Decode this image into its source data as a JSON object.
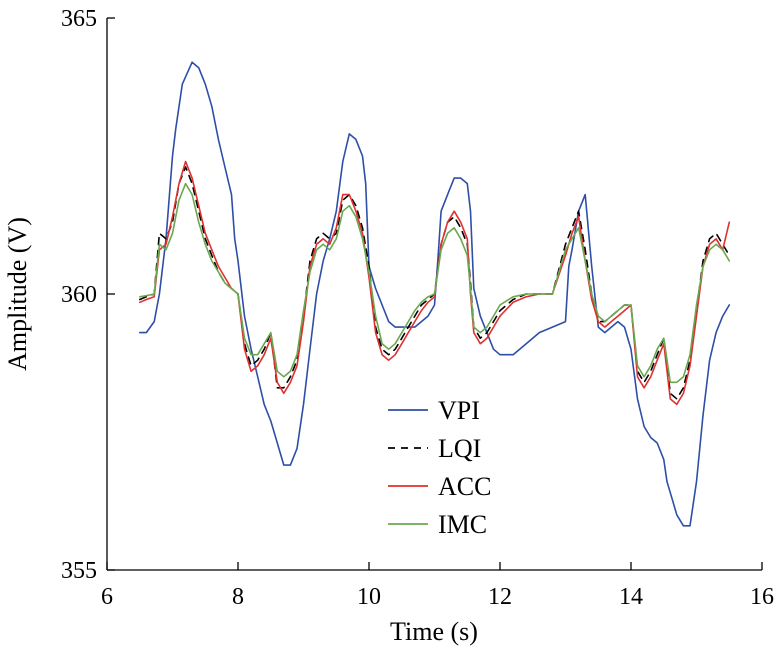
{
  "chart_data": {
    "type": "line",
    "title": "",
    "xlabel": "Time (s)",
    "ylabel": "Amplitude (V)",
    "xlim": [
      6,
      16
    ],
    "ylim": [
      355,
      365
    ],
    "xticks": [
      6,
      8,
      10,
      12,
      14,
      16
    ],
    "yticks": [
      355,
      360,
      365
    ],
    "grid": false,
    "legend_position": "lower-center",
    "series": [
      {
        "name": "VPI",
        "color": "#2e4fa8",
        "dash": "solid",
        "x": [
          6.5,
          6.6,
          6.72,
          6.8,
          6.9,
          7.0,
          7.05,
          7.15,
          7.3,
          7.4,
          7.5,
          7.6,
          7.7,
          7.8,
          7.9,
          7.95,
          8.0,
          8.1,
          8.2,
          8.3,
          8.4,
          8.5,
          8.6,
          8.7,
          8.8,
          8.9,
          9.0,
          9.1,
          9.2,
          9.3,
          9.4,
          9.5,
          9.6,
          9.7,
          9.8,
          9.9,
          9.95,
          10.0,
          10.1,
          10.2,
          10.3,
          10.4,
          10.5,
          10.6,
          10.7,
          10.8,
          10.9,
          11.0,
          11.05,
          11.1,
          11.2,
          11.3,
          11.4,
          11.5,
          11.55,
          11.6,
          11.7,
          11.8,
          11.9,
          12.0,
          12.2,
          12.4,
          12.6,
          12.8,
          13.0,
          13.05,
          13.1,
          13.2,
          13.3,
          13.4,
          13.5,
          13.6,
          13.7,
          13.8,
          13.9,
          14.0,
          14.1,
          14.2,
          14.3,
          14.4,
          14.5,
          14.55,
          14.6,
          14.7,
          14.8,
          14.9,
          15.0,
          15.1,
          15.2,
          15.3,
          15.4,
          15.5
        ],
        "y": [
          359.3,
          359.3,
          359.5,
          360.0,
          361.0,
          362.5,
          363.0,
          363.8,
          364.2,
          364.1,
          363.8,
          363.4,
          362.8,
          362.3,
          361.8,
          361.0,
          360.6,
          359.6,
          359.0,
          358.5,
          358.0,
          357.7,
          357.3,
          356.9,
          356.9,
          357.2,
          358.0,
          359.0,
          360.0,
          360.6,
          361.0,
          361.5,
          362.4,
          362.9,
          362.8,
          362.5,
          362.0,
          360.5,
          360.1,
          359.8,
          359.5,
          359.4,
          359.4,
          359.4,
          359.4,
          359.5,
          359.6,
          359.8,
          360.6,
          361.5,
          361.8,
          362.1,
          362.1,
          362.0,
          361.5,
          360.1,
          359.6,
          359.3,
          359.0,
          358.9,
          358.9,
          359.1,
          359.3,
          359.4,
          359.5,
          360.5,
          360.8,
          361.5,
          361.8,
          360.5,
          359.4,
          359.3,
          359.4,
          359.5,
          359.4,
          359.0,
          358.1,
          357.6,
          357.4,
          357.3,
          357.0,
          356.6,
          356.4,
          356.0,
          355.8,
          355.8,
          356.6,
          357.8,
          358.8,
          359.3,
          359.6,
          359.8
        ]
      },
      {
        "name": "LQI",
        "color": "#000000",
        "dash": "dashed",
        "x": [
          6.5,
          6.6,
          6.72,
          6.8,
          6.9,
          7.0,
          7.1,
          7.2,
          7.3,
          7.4,
          7.5,
          7.6,
          7.7,
          7.8,
          7.9,
          8.0,
          8.1,
          8.2,
          8.3,
          8.4,
          8.5,
          8.6,
          8.7,
          8.8,
          8.9,
          9.0,
          9.1,
          9.2,
          9.3,
          9.4,
          9.5,
          9.6,
          9.7,
          9.8,
          9.9,
          10.0,
          10.1,
          10.2,
          10.3,
          10.4,
          10.5,
          10.6,
          10.7,
          10.8,
          10.9,
          11.0,
          11.1,
          11.2,
          11.3,
          11.4,
          11.5,
          11.55,
          11.6,
          11.7,
          11.8,
          11.9,
          12.0,
          12.2,
          12.4,
          12.6,
          12.8,
          13.0,
          13.1,
          13.2,
          13.3,
          13.4,
          13.5,
          13.6,
          13.7,
          13.8,
          13.9,
          14.0,
          14.1,
          14.2,
          14.3,
          14.4,
          14.5,
          14.6,
          14.7,
          14.8,
          14.9,
          15.0,
          15.1,
          15.2,
          15.3,
          15.4,
          15.5
        ],
        "y": [
          359.9,
          359.95,
          360.0,
          361.1,
          361.0,
          361.3,
          362.0,
          362.3,
          362.0,
          361.5,
          361.0,
          360.7,
          360.4,
          360.2,
          360.1,
          360.0,
          359.1,
          358.7,
          358.8,
          359.0,
          359.3,
          358.3,
          358.3,
          358.5,
          358.8,
          359.6,
          360.6,
          361.0,
          361.1,
          361.0,
          361.1,
          361.7,
          361.8,
          361.6,
          361.2,
          360.5,
          359.4,
          359.0,
          358.9,
          359.0,
          359.2,
          359.4,
          359.6,
          359.8,
          359.9,
          360.0,
          360.9,
          361.3,
          361.4,
          361.2,
          360.9,
          360.2,
          359.4,
          359.2,
          359.3,
          359.5,
          359.7,
          359.9,
          360.0,
          360.0,
          360.0,
          360.9,
          361.2,
          361.5,
          360.8,
          360.0,
          359.5,
          359.5,
          359.6,
          359.7,
          359.8,
          359.8,
          358.6,
          358.4,
          358.6,
          358.9,
          359.2,
          358.2,
          358.1,
          358.3,
          358.8,
          359.7,
          360.6,
          361.0,
          361.1,
          360.9,
          360.7
        ]
      },
      {
        "name": "ACC",
        "color": "#e03030",
        "dash": "solid",
        "x": [
          6.5,
          6.6,
          6.72,
          6.8,
          6.9,
          7.0,
          7.1,
          7.2,
          7.3,
          7.4,
          7.5,
          7.6,
          7.7,
          7.8,
          7.9,
          8.0,
          8.1,
          8.2,
          8.3,
          8.4,
          8.5,
          8.6,
          8.7,
          8.8,
          8.9,
          9.0,
          9.1,
          9.2,
          9.3,
          9.4,
          9.5,
          9.6,
          9.7,
          9.8,
          9.9,
          10.0,
          10.1,
          10.2,
          10.3,
          10.4,
          10.5,
          10.6,
          10.7,
          10.8,
          10.9,
          11.0,
          11.1,
          11.2,
          11.3,
          11.4,
          11.5,
          11.55,
          11.6,
          11.7,
          11.8,
          11.9,
          12.0,
          12.2,
          12.4,
          12.6,
          12.8,
          13.0,
          13.1,
          13.2,
          13.3,
          13.4,
          13.5,
          13.6,
          13.7,
          13.8,
          13.9,
          14.0,
          14.1,
          14.2,
          14.3,
          14.4,
          14.5,
          14.6,
          14.7,
          14.8,
          14.9,
          15.0,
          15.1,
          15.2,
          15.3,
          15.4,
          15.5
        ],
        "y": [
          359.85,
          359.9,
          359.95,
          360.8,
          360.9,
          361.4,
          362.0,
          362.4,
          362.1,
          361.6,
          361.1,
          360.8,
          360.5,
          360.3,
          360.1,
          360.0,
          359.0,
          358.6,
          358.7,
          358.9,
          359.2,
          358.4,
          358.2,
          358.4,
          358.7,
          359.5,
          360.5,
          360.9,
          361.0,
          360.9,
          361.2,
          361.8,
          361.8,
          361.5,
          361.1,
          360.3,
          359.3,
          358.9,
          358.8,
          358.9,
          359.1,
          359.3,
          359.5,
          359.7,
          359.85,
          359.95,
          360.9,
          361.3,
          361.5,
          361.3,
          361.0,
          360.0,
          359.3,
          359.1,
          359.2,
          359.4,
          359.6,
          359.85,
          359.95,
          360.0,
          360.0,
          360.7,
          361.1,
          361.4,
          360.6,
          359.9,
          359.5,
          359.4,
          359.5,
          359.6,
          359.7,
          359.8,
          358.5,
          358.3,
          358.5,
          358.8,
          359.1,
          358.1,
          358.0,
          358.2,
          358.7,
          359.6,
          360.5,
          360.9,
          361.0,
          360.8,
          361.3
        ]
      },
      {
        "name": "IMC",
        "color": "#6aa84f",
        "dash": "solid",
        "x": [
          6.5,
          6.6,
          6.72,
          6.8,
          6.9,
          7.0,
          7.1,
          7.2,
          7.3,
          7.4,
          7.5,
          7.6,
          7.7,
          7.8,
          7.9,
          8.0,
          8.1,
          8.2,
          8.3,
          8.4,
          8.5,
          8.6,
          8.7,
          8.8,
          8.9,
          9.0,
          9.1,
          9.2,
          9.3,
          9.4,
          9.5,
          9.6,
          9.7,
          9.8,
          9.9,
          10.0,
          10.1,
          10.2,
          10.3,
          10.4,
          10.5,
          10.6,
          10.7,
          10.8,
          10.9,
          11.0,
          11.1,
          11.2,
          11.3,
          11.4,
          11.5,
          11.55,
          11.6,
          11.7,
          11.8,
          11.9,
          12.0,
          12.2,
          12.4,
          12.6,
          12.8,
          13.0,
          13.1,
          13.2,
          13.3,
          13.4,
          13.5,
          13.6,
          13.7,
          13.8,
          13.9,
          14.0,
          14.1,
          14.2,
          14.3,
          14.4,
          14.5,
          14.6,
          14.7,
          14.8,
          14.9,
          15.0,
          15.1,
          15.2,
          15.3,
          15.4,
          15.5
        ],
        "y": [
          359.95,
          359.97,
          360.0,
          360.9,
          360.8,
          361.1,
          361.7,
          362.0,
          361.8,
          361.3,
          360.9,
          360.6,
          360.4,
          360.2,
          360.1,
          360.0,
          359.2,
          358.9,
          358.9,
          359.1,
          359.3,
          358.6,
          358.5,
          358.6,
          358.9,
          359.7,
          360.4,
          360.8,
          360.9,
          360.8,
          361.0,
          361.5,
          361.6,
          361.4,
          361.0,
          360.4,
          359.6,
          359.1,
          359.0,
          359.1,
          359.3,
          359.5,
          359.7,
          359.85,
          359.95,
          360.0,
          360.8,
          361.1,
          361.2,
          361.0,
          360.7,
          360.1,
          359.4,
          359.3,
          359.4,
          359.6,
          359.8,
          359.95,
          360.0,
          360.0,
          360.0,
          360.8,
          361.0,
          361.2,
          360.6,
          360.0,
          359.6,
          359.5,
          359.6,
          359.7,
          359.8,
          359.8,
          358.7,
          358.5,
          358.7,
          359.0,
          359.2,
          358.4,
          358.4,
          358.5,
          358.9,
          359.8,
          360.5,
          360.8,
          360.9,
          360.8,
          360.6
        ]
      }
    ]
  }
}
